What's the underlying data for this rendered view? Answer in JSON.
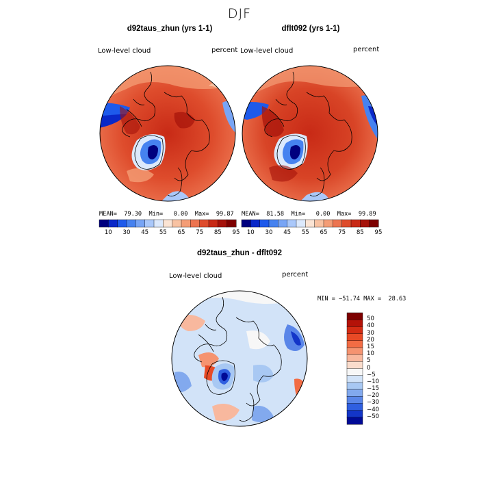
{
  "figure": {
    "season": "DJF"
  },
  "panels": [
    {
      "title": "d92taus_zhun (yrs 1-1)",
      "field": "Low-level cloud",
      "units": "percent",
      "mean_label": "MEAN=",
      "mean": "79.30",
      "min_label": "Min=",
      "min": "0.00",
      "max_label": "Max=",
      "max": "99.87"
    },
    {
      "title": "dflt092 (yrs 1-1)",
      "field": "Low-level cloud",
      "units": "percent",
      "mean_label": "MEAN=",
      "mean": "81.58",
      "min_label": "Min=",
      "min": "0.00",
      "max_label": "Max=",
      "max": "99.89"
    }
  ],
  "diff_panel": {
    "title": "d92taus_zhun - dflt092",
    "field": "Low-level cloud",
    "units": "percent",
    "minmax_text": "MIN = −51.74 MAX =  28.63"
  },
  "chart_data": [
    {
      "type": "heatmap",
      "projection": "polar stereographic (north pole)",
      "title": "d92taus_zhun (yrs 1-1)",
      "variable": "Low-level cloud",
      "units": "percent",
      "stats": {
        "mean": 79.3,
        "min": 0.0,
        "max": 99.87
      },
      "colorbar": {
        "ticks": [
          "10",
          "30",
          "45",
          "55",
          "65",
          "75",
          "85",
          "95"
        ],
        "colors": [
          "#00007f",
          "#0a28c8",
          "#1e5aeb",
          "#4682f0",
          "#78a5f5",
          "#aac8fa",
          "#dce9fc",
          "#fbe4d4",
          "#f8c2a2",
          "#f49d76",
          "#ec7450",
          "#de4c2c",
          "#c82a16",
          "#a5120a",
          "#7d0000"
        ]
      }
    },
    {
      "type": "heatmap",
      "projection": "polar stereographic (north pole)",
      "title": "dflt092 (yrs 1-1)",
      "variable": "Low-level cloud",
      "units": "percent",
      "stats": {
        "mean": 81.58,
        "min": 0.0,
        "max": 99.89
      },
      "colorbar": {
        "ticks": [
          "10",
          "30",
          "45",
          "55",
          "65",
          "75",
          "85",
          "95"
        ],
        "colors": [
          "#00007f",
          "#0a28c8",
          "#1e5aeb",
          "#4682f0",
          "#78a5f5",
          "#aac8fa",
          "#dce9fc",
          "#fbe4d4",
          "#f8c2a2",
          "#f49d76",
          "#ec7450",
          "#de4c2c",
          "#c82a16",
          "#a5120a",
          "#7d0000"
        ]
      }
    },
    {
      "type": "heatmap",
      "projection": "polar stereographic (north pole)",
      "title": "d92taus_zhun - dflt092",
      "variable": "Low-level cloud",
      "units": "percent",
      "stats": {
        "min": -51.74,
        "max": 28.63
      },
      "colorbar": {
        "ticks": [
          "50",
          "40",
          "30",
          "20",
          "15",
          "10",
          "5",
          "0",
          "−5",
          "−10",
          "−15",
          "−20",
          "−30",
          "−40",
          "−50"
        ],
        "colors": [
          "#7d0000",
          "#b41208",
          "#d42c14",
          "#e84a26",
          "#f26c44",
          "#f59370",
          "#f8b89e",
          "#fadccc",
          "#f7f7f7",
          "#d2e3f8",
          "#a8c8f3",
          "#82a9ee",
          "#5a86e8",
          "#2f5fe0",
          "#1335c8",
          "#000a96"
        ]
      }
    }
  ]
}
